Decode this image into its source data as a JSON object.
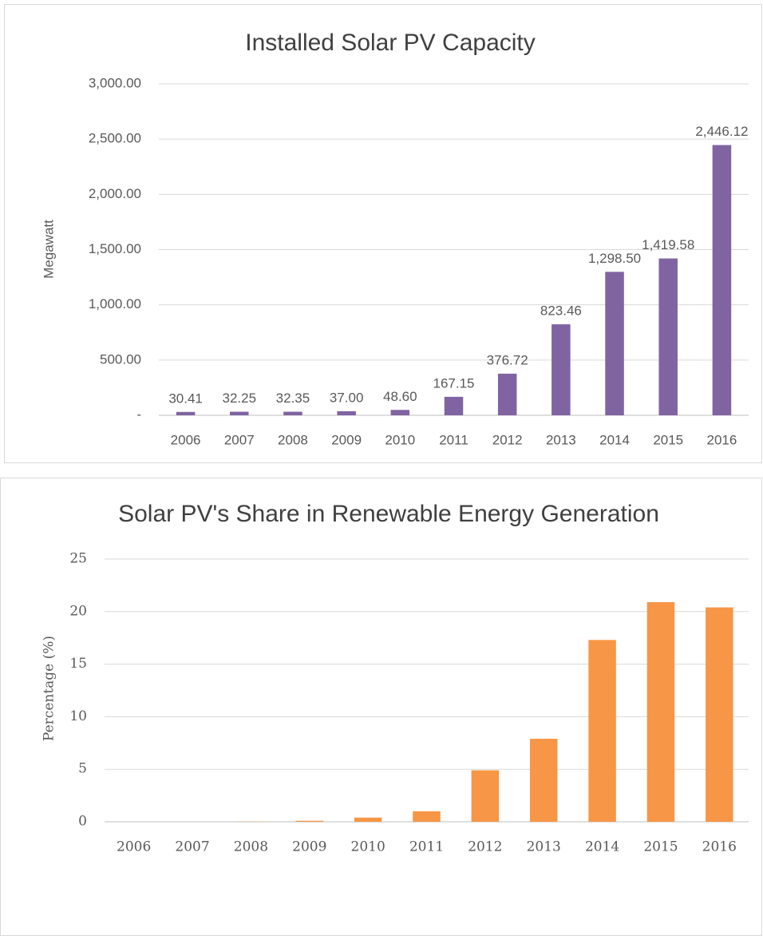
{
  "chart_data": [
    {
      "type": "bar",
      "title": "Installed Solar PV Capacity",
      "y_label": "Megawatt",
      "categories": [
        "2006",
        "2007",
        "2008",
        "2009",
        "2010",
        "2011",
        "2012",
        "2013",
        "2014",
        "2015",
        "2016"
      ],
      "values": [
        30.41,
        32.25,
        32.35,
        37.0,
        48.6,
        167.15,
        376.72,
        823.46,
        1298.5,
        1419.58,
        2446.12
      ],
      "value_labels": [
        "30.41",
        "32.25",
        "32.35",
        "37.00",
        "48.60",
        "167.15",
        "376.72",
        "823.46",
        "1,298.50",
        "1,419.58",
        "2,446.12"
      ],
      "color": "#8064a2",
      "ylim": [
        0,
        3000
      ],
      "yticks": [
        {
          "value": 0,
          "label": "-"
        },
        {
          "value": 500,
          "label": "500.00"
        },
        {
          "value": 1000,
          "label": "1,000.00"
        },
        {
          "value": 1500,
          "label": "1,500.00"
        },
        {
          "value": 2000,
          "label": "2,000.00"
        },
        {
          "value": 2500,
          "label": "2,500.00"
        },
        {
          "value": 3000,
          "label": "3,000.00"
        }
      ],
      "grid": true
    },
    {
      "type": "bar",
      "title": "Solar PV's Share in Renewable Energy Generation",
      "y_label": "Percentage (%)",
      "categories": [
        "2006",
        "2007",
        "2008",
        "2009",
        "2010",
        "2011",
        "2012",
        "2013",
        "2014",
        "2015",
        "2016"
      ],
      "values": [
        0,
        0,
        0.02,
        0.1,
        0.4,
        1.0,
        4.9,
        7.9,
        17.3,
        20.9,
        20.4
      ],
      "color": "#f79646",
      "ylim": [
        0,
        25
      ],
      "yticks": [
        0,
        5,
        10,
        15,
        20,
        25
      ],
      "grid": true
    }
  ]
}
